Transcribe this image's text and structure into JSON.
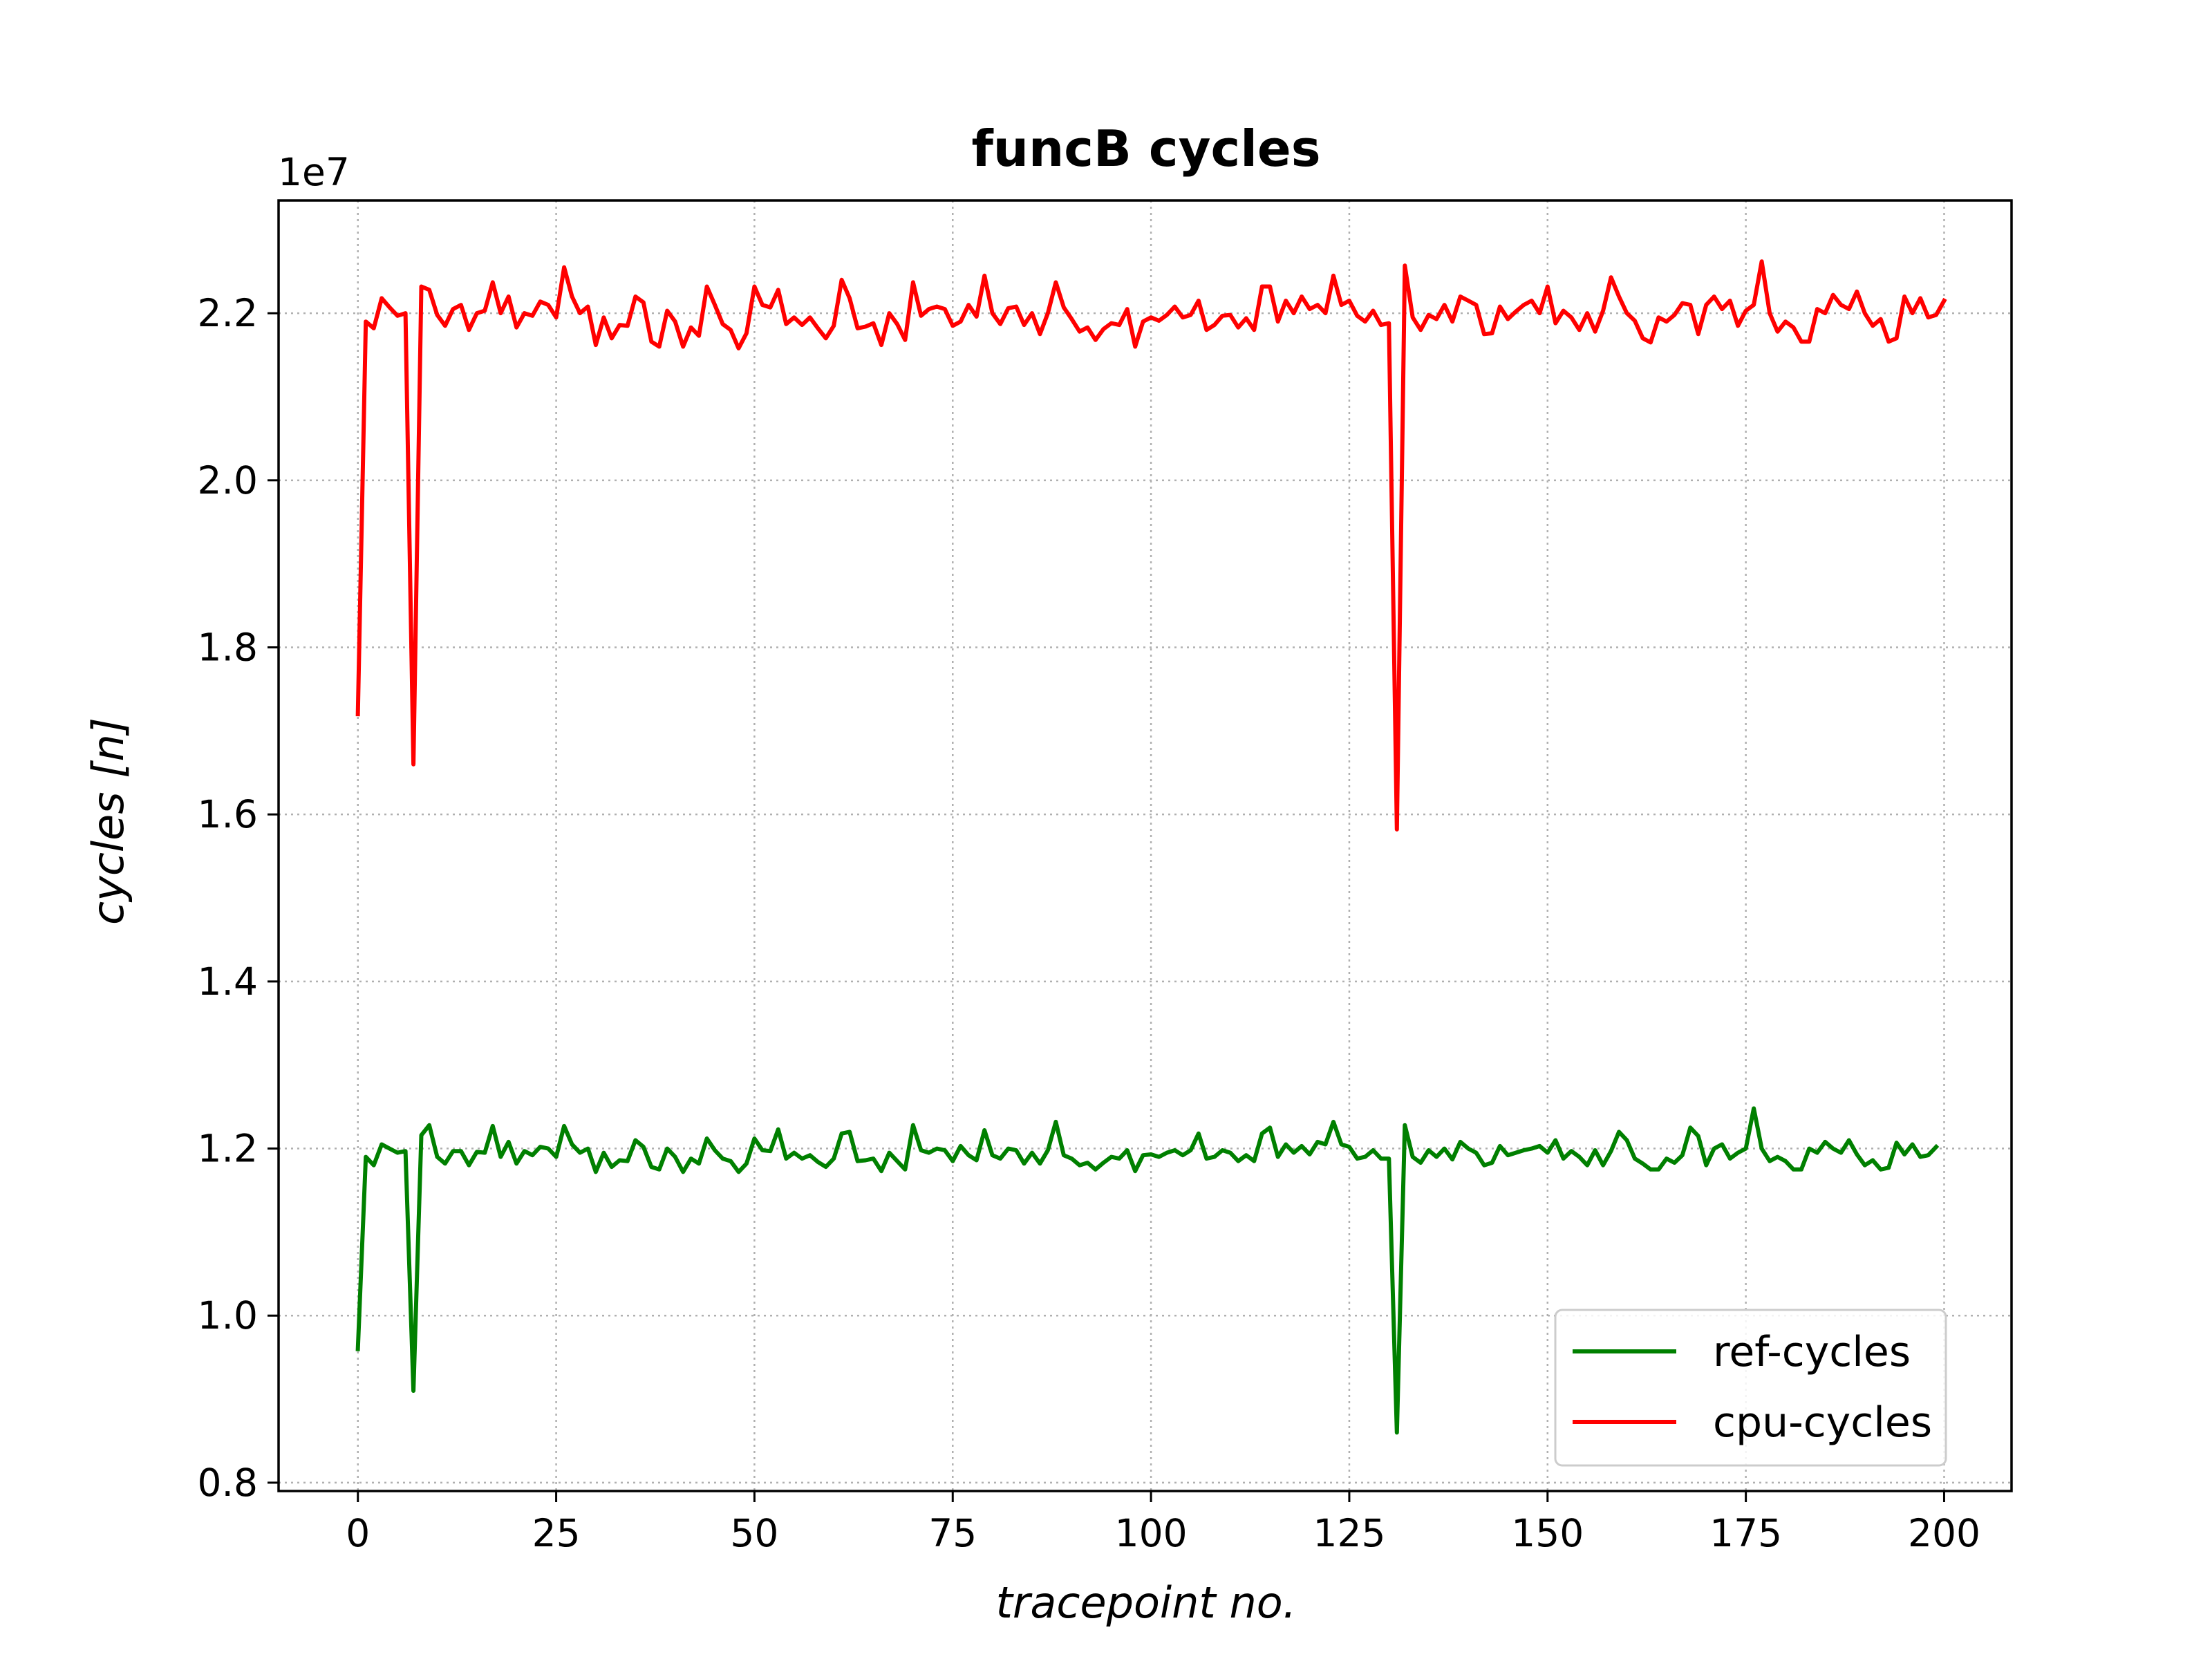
{
  "chart_data": {
    "type": "line",
    "title": "funcB cycles",
    "xlabel": "tracepoint no.",
    "ylabel": "cycles [n]",
    "y_offset_label": "1e7",
    "xlim": [
      -10,
      208.5
    ],
    "ylim": [
      0.79,
      2.335
    ],
    "y_scale_factor": 10000000,
    "x_ticks": [
      0,
      25,
      50,
      75,
      100,
      125,
      150,
      175,
      200
    ],
    "x_tick_labels": [
      "0",
      "25",
      "50",
      "75",
      "100",
      "125",
      "150",
      "175",
      "200"
    ],
    "y_ticks": [
      0.8,
      1.0,
      1.2,
      1.4,
      1.6,
      1.8,
      2.0,
      2.2
    ],
    "y_tick_labels": [
      "0.8",
      "1.0",
      "1.2",
      "1.4",
      "1.6",
      "1.8",
      "2.0",
      "2.2"
    ],
    "grid": true,
    "legend_position": "lower-right",
    "series": [
      {
        "name": "ref-cycles",
        "color": "#008000",
        "values": [
          0.96,
          1.19,
          1.18,
          1.205,
          1.2,
          1.195,
          1.197,
          0.91,
          1.216,
          1.228,
          1.19,
          1.182,
          1.197,
          1.197,
          1.18,
          1.196,
          1.195,
          1.227,
          1.19,
          1.208,
          1.182,
          1.197,
          1.192,
          1.202,
          1.2,
          1.19,
          1.227,
          1.205,
          1.195,
          1.2,
          1.172,
          1.195,
          1.178,
          1.186,
          1.185,
          1.21,
          1.202,
          1.178,
          1.175,
          1.2,
          1.19,
          1.172,
          1.188,
          1.182,
          1.212,
          1.198,
          1.188,
          1.185,
          1.172,
          1.182,
          1.212,
          1.198,
          1.197,
          1.223,
          1.188,
          1.195,
          1.188,
          1.192,
          1.184,
          1.178,
          1.188,
          1.218,
          1.22,
          1.185,
          1.186,
          1.188,
          1.173,
          1.195,
          1.185,
          1.175,
          1.228,
          1.198,
          1.195,
          1.2,
          1.198,
          1.185,
          1.203,
          1.192,
          1.186,
          1.222,
          1.192,
          1.188,
          1.2,
          1.198,
          1.182,
          1.195,
          1.182,
          1.198,
          1.232,
          1.192,
          1.188,
          1.18,
          1.183,
          1.175,
          1.183,
          1.19,
          1.188,
          1.198,
          1.173,
          1.192,
          1.193,
          1.19,
          1.195,
          1.198,
          1.192,
          1.198,
          1.218,
          1.188,
          1.19,
          1.198,
          1.195,
          1.185,
          1.192,
          1.185,
          1.218,
          1.225,
          1.19,
          1.205,
          1.195,
          1.203,
          1.193,
          1.208,
          1.205,
          1.232,
          1.205,
          1.202,
          1.188,
          1.19,
          1.198,
          1.188,
          1.188,
          0.86,
          1.228,
          1.19,
          1.183,
          1.198,
          1.19,
          1.2,
          1.187,
          1.208,
          1.2,
          1.195,
          1.18,
          1.183,
          1.203,
          1.192,
          1.195,
          1.198,
          1.2,
          1.203,
          1.195,
          1.21,
          1.188,
          1.197,
          1.19,
          1.18,
          1.198,
          1.18,
          1.197,
          1.22,
          1.21,
          1.188,
          1.182,
          1.175,
          1.175,
          1.188,
          1.183,
          1.192,
          1.225,
          1.215,
          1.18,
          1.2,
          1.205,
          1.188,
          1.195,
          1.2,
          1.248,
          1.2,
          1.185,
          1.19,
          1.185,
          1.175,
          1.175,
          1.2,
          1.195,
          1.208,
          1.2,
          1.195,
          1.21,
          1.193,
          1.18,
          1.186,
          1.175,
          1.177,
          1.207,
          1.193,
          1.205,
          1.19,
          1.192,
          1.202
        ]
      },
      {
        "name": "cpu-cycles",
        "color": "#ff0000",
        "values": [
          1.72,
          2.19,
          2.182,
          2.218,
          2.207,
          2.197,
          2.2,
          1.66,
          2.232,
          2.228,
          2.198,
          2.185,
          2.205,
          2.21,
          2.18,
          2.2,
          2.203,
          2.237,
          2.2,
          2.22,
          2.183,
          2.2,
          2.197,
          2.214,
          2.21,
          2.195,
          2.255,
          2.22,
          2.2,
          2.208,
          2.162,
          2.195,
          2.17,
          2.186,
          2.185,
          2.22,
          2.213,
          2.166,
          2.16,
          2.203,
          2.19,
          2.16,
          2.183,
          2.173,
          2.232,
          2.21,
          2.187,
          2.18,
          2.158,
          2.176,
          2.232,
          2.21,
          2.207,
          2.228,
          2.187,
          2.195,
          2.186,
          2.195,
          2.182,
          2.17,
          2.185,
          2.24,
          2.218,
          2.182,
          2.184,
          2.188,
          2.162,
          2.2,
          2.187,
          2.168,
          2.237,
          2.197,
          2.205,
          2.208,
          2.205,
          2.185,
          2.19,
          2.21,
          2.196,
          2.245,
          2.2,
          2.187,
          2.206,
          2.208,
          2.186,
          2.2,
          2.175,
          2.2,
          2.237,
          2.207,
          2.193,
          2.178,
          2.183,
          2.168,
          2.181,
          2.188,
          2.186,
          2.205,
          2.16,
          2.19,
          2.195,
          2.191,
          2.198,
          2.208,
          2.195,
          2.198,
          2.215,
          2.18,
          2.186,
          2.197,
          2.198,
          2.183,
          2.194,
          2.18,
          2.232,
          2.232,
          2.19,
          2.215,
          2.2,
          2.22,
          2.205,
          2.21,
          2.2,
          2.245,
          2.21,
          2.215,
          2.197,
          2.19,
          2.203,
          2.186,
          2.188,
          1.582,
          2.257,
          2.195,
          2.18,
          2.198,
          2.193,
          2.21,
          2.19,
          2.22,
          2.215,
          2.21,
          2.175,
          2.176,
          2.208,
          2.193,
          2.202,
          2.21,
          2.215,
          2.2,
          2.232,
          2.188,
          2.203,
          2.195,
          2.18,
          2.2,
          2.178,
          2.203,
          2.243,
          2.22,
          2.2,
          2.191,
          2.17,
          2.165,
          2.195,
          2.19,
          2.198,
          2.212,
          2.21,
          2.175,
          2.21,
          2.22,
          2.205,
          2.215,
          2.185,
          2.203,
          2.21,
          2.262,
          2.2,
          2.178,
          2.19,
          2.183,
          2.166,
          2.166,
          2.205,
          2.2,
          2.222,
          2.21,
          2.205,
          2.226,
          2.2,
          2.185,
          2.193,
          2.166,
          2.17,
          2.22,
          2.2,
          2.218,
          2.195,
          2.198,
          2.215
        ]
      }
    ]
  }
}
